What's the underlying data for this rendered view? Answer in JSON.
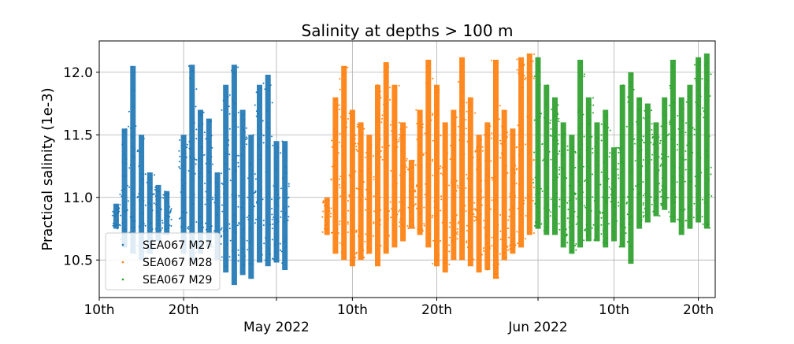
{
  "chart_data": {
    "type": "scatter",
    "title": "Salinity at depths > 100 m",
    "xlabel": "",
    "ylabel": "Practical salinity (1e-3)",
    "ylim": [
      10.2,
      12.25
    ],
    "xlim": [
      "2022-04-10",
      "2022-06-22"
    ],
    "y_ticks": [
      {
        "value": 10.5,
        "label": "10.5"
      },
      {
        "value": 11.0,
        "label": "11.0"
      },
      {
        "value": 11.5,
        "label": "11.5"
      },
      {
        "value": 12.0,
        "label": "12.0"
      }
    ],
    "x_ticks": [
      {
        "date": "2022-04-10",
        "label": "10th"
      },
      {
        "date": "2022-04-20",
        "label": "20th"
      },
      {
        "date": "2022-05-01",
        "label": ""
      },
      {
        "date": "2022-05-10",
        "label": "10th"
      },
      {
        "date": "2022-05-20",
        "label": "20th"
      },
      {
        "date": "2022-06-01",
        "label": ""
      },
      {
        "date": "2022-06-10",
        "label": "10th"
      },
      {
        "date": "2022-06-20",
        "label": "20th"
      }
    ],
    "month_labels": [
      {
        "date": "2022-05-01",
        "label": "May 2022"
      },
      {
        "date": "2022-06-01",
        "label": "Jun 2022"
      }
    ],
    "grid": true,
    "legend_position": "lower-left",
    "series": [
      {
        "name": "SEA067 M27",
        "color": "#1f77b4",
        "x": [
          "2022-04-12",
          "2022-04-13",
          "2022-04-14",
          "2022-04-15",
          "2022-04-16",
          "2022-04-17",
          "2022-04-18",
          "2022-04-20",
          "2022-04-21",
          "2022-04-22",
          "2022-04-23",
          "2022-04-24",
          "2022-04-25",
          "2022-04-26",
          "2022-04-27",
          "2022-04-28",
          "2022-04-29",
          "2022-04-30",
          "2022-05-01",
          "2022-05-02"
        ],
        "ymin": [
          10.75,
          10.6,
          10.55,
          10.5,
          10.55,
          10.65,
          10.7,
          10.55,
          10.5,
          10.55,
          10.6,
          10.5,
          10.4,
          10.3,
          10.38,
          10.35,
          10.48,
          10.45,
          10.48,
          10.42
        ],
        "ymax": [
          10.95,
          11.55,
          12.05,
          11.5,
          11.2,
          11.1,
          11.05,
          11.5,
          12.06,
          11.7,
          11.63,
          11.2,
          11.9,
          12.06,
          11.7,
          11.5,
          11.9,
          11.98,
          11.45,
          11.45
        ]
      },
      {
        "name": "SEA067 M28",
        "color": "#ff7f0e",
        "x": [
          "2022-05-07",
          "2022-05-08",
          "2022-05-09",
          "2022-05-10",
          "2022-05-11",
          "2022-05-12",
          "2022-05-13",
          "2022-05-14",
          "2022-05-15",
          "2022-05-16",
          "2022-05-17",
          "2022-05-18",
          "2022-05-19",
          "2022-05-20",
          "2022-05-21",
          "2022-05-22",
          "2022-05-23",
          "2022-05-24",
          "2022-05-25",
          "2022-05-26",
          "2022-05-27",
          "2022-05-28",
          "2022-05-29",
          "2022-05-30",
          "2022-05-31"
        ],
        "ymin": [
          10.7,
          10.55,
          10.5,
          10.45,
          10.5,
          10.55,
          10.45,
          10.55,
          10.6,
          10.65,
          10.75,
          10.7,
          10.6,
          10.45,
          10.4,
          10.5,
          10.5,
          10.45,
          10.4,
          10.42,
          10.35,
          10.5,
          10.55,
          10.6,
          10.7
        ],
        "ymax": [
          11.0,
          11.8,
          12.05,
          11.7,
          11.6,
          11.5,
          11.9,
          12.08,
          11.9,
          11.6,
          11.3,
          11.7,
          12.1,
          11.9,
          11.6,
          11.7,
          12.12,
          11.8,
          11.5,
          11.6,
          12.1,
          11.7,
          11.55,
          12.12,
          12.15
        ]
      },
      {
        "name": "SEA067 M29",
        "color": "#2ca02c",
        "x": [
          "2022-06-01",
          "2022-06-02",
          "2022-06-03",
          "2022-06-04",
          "2022-06-05",
          "2022-06-06",
          "2022-06-07",
          "2022-06-08",
          "2022-06-09",
          "2022-06-10",
          "2022-06-11",
          "2022-06-12",
          "2022-06-13",
          "2022-06-14",
          "2022-06-15",
          "2022-06-16",
          "2022-06-17",
          "2022-06-18",
          "2022-06-19",
          "2022-06-20",
          "2022-06-21"
        ],
        "ymin": [
          10.75,
          10.7,
          10.7,
          10.6,
          10.55,
          10.6,
          10.65,
          10.65,
          10.6,
          10.65,
          10.6,
          10.47,
          10.75,
          10.8,
          10.85,
          10.9,
          10.8,
          10.7,
          10.75,
          10.8,
          10.75
        ],
        "ymax": [
          12.12,
          11.9,
          11.8,
          11.6,
          11.5,
          12.1,
          11.8,
          11.6,
          11.7,
          11.4,
          11.9,
          12.0,
          11.8,
          11.75,
          11.6,
          11.8,
          12.1,
          11.8,
          11.9,
          12.12,
          12.15
        ]
      }
    ]
  }
}
